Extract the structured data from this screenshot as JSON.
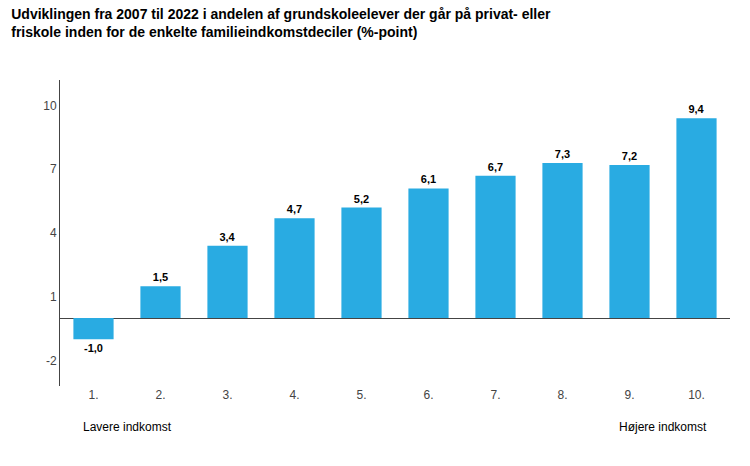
{
  "chart_data": {
    "type": "bar",
    "title": "Udviklingen fra 2007 til 2022 i andelen af grundskoleelever der går på privat- eller\nfriskole inden for de enkelte familieindkomstdeciler (%-point)",
    "categories": [
      "1.",
      "2.",
      "3.",
      "4.",
      "5.",
      "6.",
      "7.",
      "8.",
      "9.",
      "10."
    ],
    "values": [
      -1.0,
      1.5,
      3.4,
      4.7,
      5.2,
      6.1,
      6.7,
      7.3,
      7.2,
      9.4
    ],
    "value_labels": [
      "-1,0",
      "1,5",
      "3,4",
      "4,7",
      "5,2",
      "6,1",
      "6,7",
      "7,3",
      "7,2",
      "9,4"
    ],
    "data_labels": true,
    "color": "#29ABE2",
    "ylim": [
      -3.2,
      11.2
    ],
    "yticks": [
      -2,
      1,
      4,
      7,
      10
    ],
    "grid": false,
    "annotations": [
      "Lavere indkomst",
      "Højere indkomst"
    ]
  }
}
